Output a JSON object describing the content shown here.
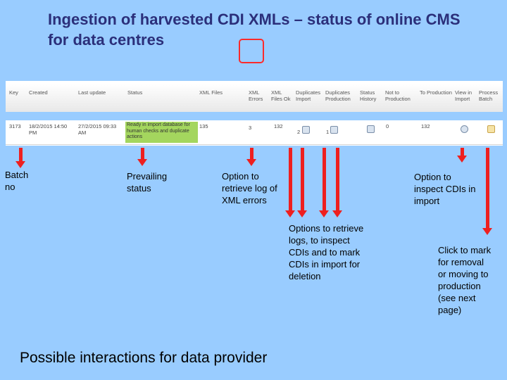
{
  "title": "Ingestion of harvested CDI XMLs – status of online CMS for data centres",
  "table": {
    "headers": [
      "Key",
      "Created",
      "Last update",
      "Status",
      "XML Files",
      "XML Errors",
      "XML Files Ok",
      "Duplicates Import",
      "Duplicates Production",
      "Status History",
      "Not to Production",
      "To Production",
      "View in Import",
      "Process Batch"
    ],
    "row": {
      "key": "3173",
      "created": "18/2/2015 14:50 PM",
      "last_update": "27/2/2015 09:33 AM",
      "status": "Ready in import database for human checks and duplicate actions",
      "xml_files": "135",
      "xml_errors": "3",
      "xml_files_ok": "132",
      "duplicates_import": "2",
      "duplicates_production": "1",
      "not_to_production": "0",
      "to_production": "132"
    }
  },
  "annotations": {
    "batch_no": "Batch no",
    "prevailing_status": "Prevailing status",
    "option_xml_errors": "Option to retrieve log of XML errors",
    "option_inspect_cdis": "Option to inspect CDIs in import",
    "options_retrieve_logs": "Options to retrieve logs, to inspect CDIs and to mark CDIs in import for deletion",
    "click_to_mark": "Click to mark for removal or moving to production (see next page)"
  },
  "footer": "Possible interactions for data provider",
  "colors": {
    "background": "#99ccff",
    "title": "#2b2f7a",
    "arrow": "#ee1f1f",
    "status_highlight": "#a4d65e"
  }
}
